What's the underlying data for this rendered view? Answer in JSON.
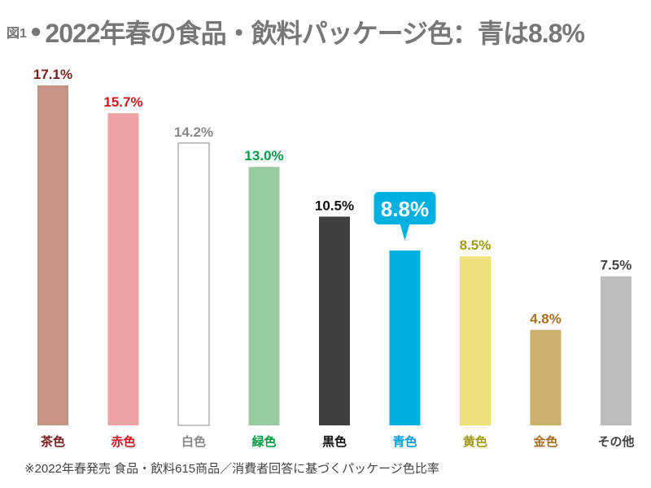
{
  "chart_data": {
    "type": "bar",
    "fig_label": "図1",
    "title": "2022年春の食品・飲料パッケージ色：青は8.8%",
    "categories": [
      "茶色",
      "赤色",
      "白色",
      "緑色",
      "黒色",
      "青色",
      "黄色",
      "金色",
      "その他"
    ],
    "values": [
      17.1,
      15.7,
      14.2,
      13.0,
      10.5,
      8.8,
      8.5,
      4.8,
      7.5
    ],
    "value_labels": [
      "17.1%",
      "15.7%",
      "14.2%",
      "13.0%",
      "10.5%",
      "8.8%",
      "8.5%",
      "4.8%",
      "7.5%"
    ],
    "bar_colors": [
      "#c49484",
      "#eea4a4",
      "#ffffff",
      "#96cca0",
      "#404040",
      "#00b0e0",
      "#eee07a",
      "#cab06a",
      "#bdbdbd"
    ],
    "label_colors": [
      "#7a1e1e",
      "#d7141e",
      "#888888",
      "#009944",
      "#111111",
      "#00a0d8",
      "#a09a10",
      "#a87020",
      "#444444"
    ],
    "highlight_index": 5,
    "ylim": [
      0,
      17.1
    ],
    "grid": false,
    "note": "※2022年春発売 食品・飲料615商品／消費者回答に基づくパッケージ色比率"
  }
}
